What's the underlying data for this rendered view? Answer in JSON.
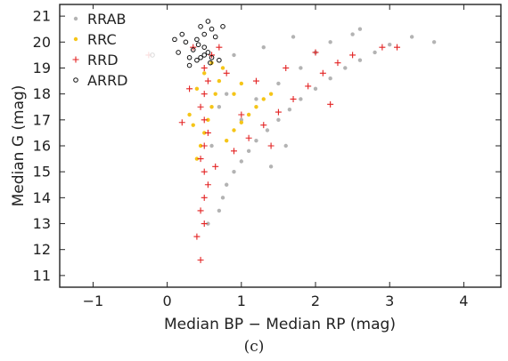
{
  "chart_data": {
    "type": "scatter",
    "title": "",
    "xlabel": "Median BP − Median RP  (mag)",
    "ylabel": "Median G  (mag)",
    "xlim": [
      -1.45,
      4.5
    ],
    "ylim": [
      21.45,
      10.55
    ],
    "y_inverted": true,
    "xticks": [
      -1,
      0,
      1,
      2,
      3,
      4
    ],
    "xtick_labels": [
      "−1",
      "0",
      "1",
      "2",
      "3",
      "4"
    ],
    "yticks": [
      11,
      12,
      13,
      14,
      15,
      16,
      17,
      18,
      19,
      20,
      21
    ],
    "ytick_labels": [
      "11",
      "12",
      "13",
      "14",
      "15",
      "16",
      "17",
      "18",
      "19",
      "20",
      "21"
    ],
    "grid": false,
    "legend_position": "top-left",
    "series": [
      {
        "name": "RRAB",
        "marker": "dot",
        "color": "#b3b3b3",
        "points": [
          [
            0.55,
            13.0
          ],
          [
            0.7,
            13.5
          ],
          [
            0.75,
            14.0
          ],
          [
            0.8,
            14.5
          ],
          [
            0.9,
            15.0
          ],
          [
            1.0,
            15.4
          ],
          [
            1.1,
            15.8
          ],
          [
            1.2,
            16.2
          ],
          [
            1.35,
            16.6
          ],
          [
            1.5,
            17.0
          ],
          [
            1.65,
            17.4
          ],
          [
            1.8,
            17.8
          ],
          [
            2.0,
            18.2
          ],
          [
            2.2,
            18.6
          ],
          [
            2.4,
            19.0
          ],
          [
            2.6,
            19.3
          ],
          [
            2.8,
            19.6
          ],
          [
            3.0,
            19.9
          ],
          [
            3.3,
            20.2
          ],
          [
            1.0,
            17.0
          ],
          [
            1.2,
            17.8
          ],
          [
            1.5,
            18.4
          ],
          [
            1.8,
            19.0
          ],
          [
            2.0,
            19.6
          ],
          [
            2.2,
            20.0
          ],
          [
            2.5,
            20.3
          ],
          [
            0.9,
            19.5
          ],
          [
            1.3,
            19.8
          ],
          [
            1.7,
            20.2
          ],
          [
            0.8,
            18.0
          ],
          [
            0.6,
            16.0
          ],
          [
            0.7,
            17.5
          ],
          [
            1.4,
            15.2
          ],
          [
            1.6,
            16.0
          ],
          [
            2.6,
            20.5
          ],
          [
            3.6,
            20.0
          ]
        ]
      },
      {
        "name": "RRC",
        "marker": "dot",
        "color": "#f5c518",
        "points": [
          [
            0.4,
            15.5
          ],
          [
            0.45,
            16.0
          ],
          [
            0.5,
            16.5
          ],
          [
            0.55,
            17.0
          ],
          [
            0.6,
            17.5
          ],
          [
            0.65,
            18.0
          ],
          [
            0.7,
            18.5
          ],
          [
            0.75,
            19.0
          ],
          [
            0.8,
            16.2
          ],
          [
            0.9,
            16.6
          ],
          [
            1.0,
            16.9
          ],
          [
            1.1,
            17.2
          ],
          [
            1.2,
            17.5
          ],
          [
            1.3,
            17.8
          ],
          [
            0.4,
            18.2
          ],
          [
            0.5,
            18.8
          ],
          [
            0.6,
            19.2
          ],
          [
            0.9,
            18.0
          ],
          [
            1.0,
            18.4
          ],
          [
            0.3,
            17.2
          ],
          [
            0.35,
            16.8
          ],
          [
            1.4,
            18.0
          ]
        ]
      },
      {
        "name": "RRD",
        "marker": "plus",
        "color": "#e32222",
        "points": [
          [
            0.45,
            11.6
          ],
          [
            0.4,
            12.5
          ],
          [
            0.5,
            13.0
          ],
          [
            0.45,
            13.5
          ],
          [
            0.5,
            14.0
          ],
          [
            0.55,
            14.5
          ],
          [
            0.5,
            15.0
          ],
          [
            0.45,
            15.5
          ],
          [
            0.5,
            16.0
          ],
          [
            0.55,
            16.5
          ],
          [
            0.5,
            17.0
          ],
          [
            0.45,
            17.5
          ],
          [
            0.5,
            18.0
          ],
          [
            0.55,
            18.5
          ],
          [
            0.5,
            19.0
          ],
          [
            0.6,
            19.5
          ],
          [
            0.7,
            19.8
          ],
          [
            0.9,
            15.8
          ],
          [
            1.1,
            16.3
          ],
          [
            1.3,
            16.8
          ],
          [
            1.5,
            17.3
          ],
          [
            1.7,
            17.8
          ],
          [
            1.9,
            18.3
          ],
          [
            2.1,
            18.8
          ],
          [
            2.3,
            19.2
          ],
          [
            2.5,
            19.5
          ],
          [
            2.9,
            19.8
          ],
          [
            0.2,
            16.9
          ],
          [
            0.3,
            18.2
          ],
          [
            1.2,
            18.5
          ],
          [
            1.6,
            19.0
          ],
          [
            2.0,
            19.6
          ],
          [
            -0.25,
            19.5
          ],
          [
            2.2,
            17.6
          ],
          [
            3.1,
            19.8
          ],
          [
            0.8,
            18.8
          ],
          [
            1.0,
            17.2
          ],
          [
            0.65,
            15.2
          ],
          [
            1.4,
            16.0
          ],
          [
            0.35,
            19.8
          ]
        ]
      },
      {
        "name": "ARRD",
        "marker": "circle",
        "color": "#111111",
        "points": [
          [
            0.3,
            19.1
          ],
          [
            0.4,
            19.3
          ],
          [
            0.45,
            19.4
          ],
          [
            0.5,
            19.5
          ],
          [
            0.55,
            19.6
          ],
          [
            0.6,
            19.4
          ],
          [
            0.35,
            19.7
          ],
          [
            0.25,
            20.0
          ],
          [
            0.4,
            20.1
          ],
          [
            0.5,
            20.3
          ],
          [
            0.6,
            20.5
          ],
          [
            0.2,
            20.3
          ],
          [
            0.15,
            19.6
          ],
          [
            0.7,
            19.3
          ],
          [
            0.45,
            20.6
          ],
          [
            0.55,
            20.8
          ],
          [
            0.1,
            20.1
          ],
          [
            -0.2,
            19.5
          ],
          [
            0.65,
            20.2
          ],
          [
            0.3,
            19.4
          ],
          [
            0.5,
            19.8
          ],
          [
            0.58,
            19.2
          ],
          [
            0.42,
            19.9
          ],
          [
            0.75,
            20.6
          ]
        ]
      }
    ]
  },
  "caption": "(c)"
}
